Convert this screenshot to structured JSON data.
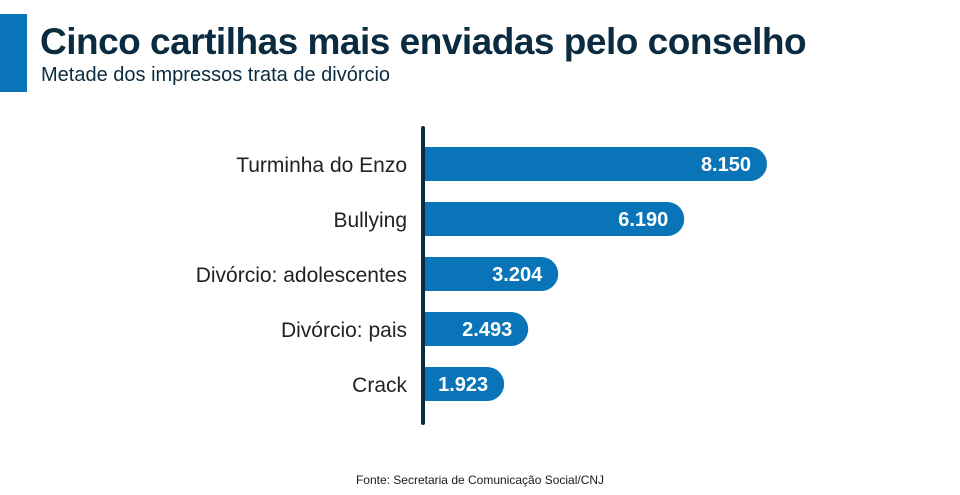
{
  "title": "Cinco cartilhas mais enviadas pelo conselho",
  "subtitle": "Metade dos impressos trata de divórcio",
  "source": "Fonte: Secretaria de Comunicação Social/CNJ",
  "colors": {
    "bar": "#0a74b8",
    "axis": "#0b2c40",
    "title": "#0b2c40",
    "value_text": "#ffffff",
    "label_text": "#222222"
  },
  "chart_data": {
    "type": "bar",
    "orientation": "horizontal",
    "categories": [
      "Turminha do Enzo",
      "Bullying",
      "Divórcio: adolescentes",
      "Divórcio: pais",
      "Crack"
    ],
    "values": [
      8150,
      6190,
      3204,
      2493,
      1923
    ],
    "value_labels": [
      "8.150",
      "6.190",
      "3.204",
      "2.493",
      "1.923"
    ],
    "title": "Cinco cartilhas mais enviadas pelo conselho",
    "subtitle": "Metade dos impressos trata de divórcio",
    "xlabel": "",
    "ylabel": "",
    "grid": false,
    "legend": "none"
  }
}
